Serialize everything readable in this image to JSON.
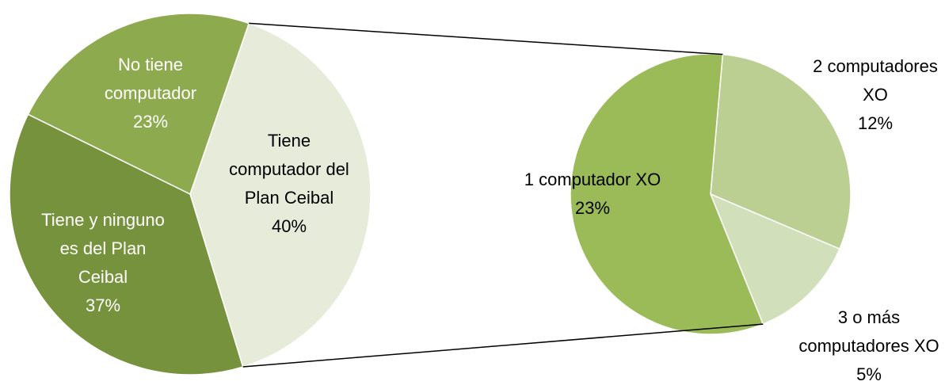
{
  "chart_data": [
    {
      "type": "pie",
      "categories": [
        "Tiene computador del Plan Ceibal",
        "Tiene y ninguno es del Plan Ceibal",
        "No tiene computador"
      ],
      "values": [
        40,
        37,
        23
      ],
      "value_labels": [
        "40%",
        "37%",
        "23%"
      ],
      "colors": [
        "#e6ecd9",
        "#76923c",
        "#8eaa4f"
      ]
    },
    {
      "type": "pie",
      "categories": [
        "2 computadores XO",
        "3 o más computadores XO",
        "1 computador XO"
      ],
      "values": [
        12,
        5,
        23
      ],
      "value_labels": [
        "12%",
        "5%",
        "23%"
      ],
      "colors": [
        "#bccf93",
        "#d2dfbb",
        "#9bbb59"
      ]
    }
  ]
}
